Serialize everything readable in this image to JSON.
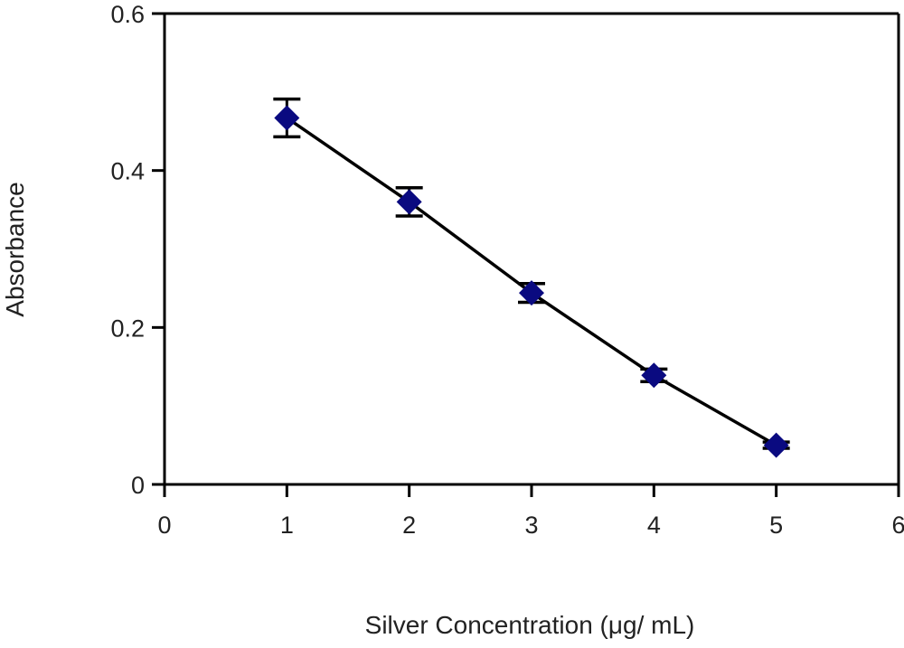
{
  "chart_data": {
    "type": "scatter",
    "title": "",
    "xlabel": "Silver Concentration (μg/ mL)",
    "ylabel": "Absorbance",
    "xlim": [
      0,
      6
    ],
    "ylim": [
      0,
      0.6
    ],
    "x_ticks": [
      "0",
      "1",
      "2",
      "3",
      "4",
      "5",
      "6"
    ],
    "y_ticks": [
      "0",
      "0.2",
      "0.4",
      "0.6"
    ],
    "grid": false,
    "legend": "none",
    "series": [
      {
        "marker": "diamond",
        "color": "#0a0a80",
        "line_color": "#000000",
        "connected": true,
        "points": [
          {
            "x": 1,
            "y": 0.467,
            "err": 0.024
          },
          {
            "x": 2,
            "y": 0.36,
            "err": 0.018
          },
          {
            "x": 3,
            "y": 0.244,
            "err": 0.012
          },
          {
            "x": 4,
            "y": 0.139,
            "err": 0.008
          },
          {
            "x": 5,
            "y": 0.05,
            "err": 0.004
          }
        ]
      }
    ]
  }
}
